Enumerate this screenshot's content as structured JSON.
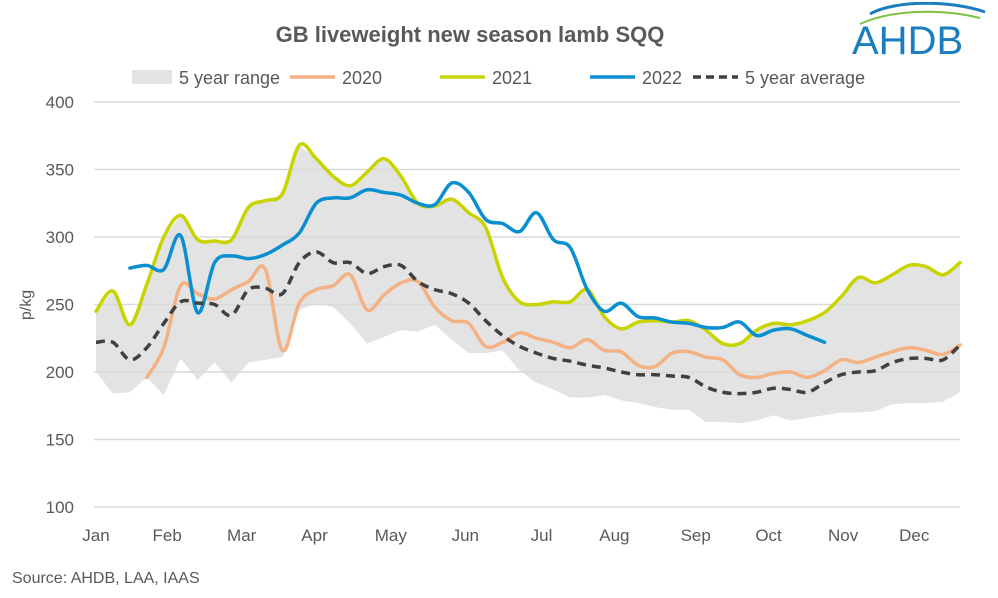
{
  "chart_data": {
    "type": "line",
    "title": "GB liveweight new season lamb SQQ",
    "ylabel": "p/kg",
    "xlabel": "",
    "ylim": [
      100,
      400
    ],
    "yticks": [
      100,
      150,
      200,
      250,
      300,
      350,
      400
    ],
    "xlim": [
      1,
      52
    ],
    "x_unit": "week",
    "month_ticks": [
      {
        "label": "Jan",
        "week": 1
      },
      {
        "label": "Feb",
        "week": 5.2
      },
      {
        "label": "Mar",
        "week": 9.6
      },
      {
        "label": "Apr",
        "week": 13.9
      },
      {
        "label": "May",
        "week": 18.4
      },
      {
        "label": "Jun",
        "week": 22.8
      },
      {
        "label": "Jul",
        "week": 27.3
      },
      {
        "label": "Aug",
        "week": 31.6
      },
      {
        "label": "Sep",
        "week": 36.4
      },
      {
        "label": "Oct",
        "week": 40.7
      },
      {
        "label": "Nov",
        "week": 45.1
      },
      {
        "label": "Dec",
        "week": 49.3
      }
    ],
    "grid": true,
    "legend_position": "top",
    "range": {
      "name": "5 year range",
      "color": "#e3e3e3",
      "start_week": 1,
      "upper": [
        245,
        260,
        235,
        265,
        300,
        316,
        298,
        297,
        298,
        322,
        327,
        332,
        368,
        358,
        345,
        338,
        348,
        358,
        345,
        325,
        323,
        328,
        318,
        307,
        270,
        252,
        250,
        252,
        252,
        261,
        241,
        232,
        237,
        238,
        237,
        238,
        231,
        221,
        221,
        231,
        236,
        235,
        238,
        244,
        256,
        270,
        266,
        272,
        279,
        278,
        272,
        281
      ],
      "lower": [
        200,
        184,
        185,
        196,
        183,
        210,
        194,
        207,
        192,
        207,
        209,
        211,
        246,
        251,
        248,
        236,
        221,
        226,
        231,
        230,
        235,
        224,
        214,
        214,
        216,
        201,
        192,
        187,
        181,
        181,
        183,
        179,
        177,
        174,
        172,
        172,
        163,
        163,
        162,
        164,
        168,
        164,
        166,
        168,
        170,
        170,
        171,
        176,
        177,
        177,
        178,
        185
      ]
    },
    "series": [
      {
        "name": "2020",
        "color": "#f4b183",
        "dashed": false,
        "start_week": 4,
        "values": [
          196,
          218,
          264,
          258,
          254,
          261,
          267,
          276,
          216,
          251,
          261,
          264,
          272,
          246,
          257,
          266,
          267,
          248,
          238,
          236,
          219,
          222,
          229,
          225,
          222,
          218,
          224,
          216,
          215,
          205,
          204,
          214,
          215,
          211,
          209,
          198,
          196,
          199,
          200,
          196,
          201,
          209,
          207,
          211,
          215,
          218,
          216,
          213,
          220
        ]
      },
      {
        "name": "2021",
        "color": "#c8d400",
        "dashed": false,
        "start_week": 1,
        "values": [
          245,
          260,
          235,
          265,
          300,
          316,
          298,
          297,
          298,
          322,
          327,
          332,
          368,
          358,
          345,
          338,
          348,
          358,
          345,
          325,
          323,
          328,
          318,
          307,
          270,
          252,
          250,
          252,
          252,
          261,
          241,
          232,
          237,
          238,
          237,
          238,
          231,
          221,
          221,
          231,
          236,
          235,
          238,
          244,
          256,
          270,
          266,
          272,
          279,
          278,
          272,
          281
        ]
      },
      {
        "name": "2022",
        "color": "#0a8fd0",
        "dashed": false,
        "start_week": 3,
        "values": [
          277,
          279,
          276,
          301,
          244,
          281,
          286,
          284,
          287,
          294,
          303,
          325,
          329,
          329,
          335,
          333,
          331,
          325,
          324,
          340,
          333,
          313,
          310,
          304,
          318,
          298,
          292,
          261,
          245,
          251,
          241,
          240,
          237,
          236,
          233,
          233,
          237,
          227,
          231,
          232,
          227,
          222
        ]
      },
      {
        "name": "5 year average",
        "color": "#404040",
        "dashed": true,
        "start_week": 1,
        "values": [
          222,
          222,
          209,
          218,
          236,
          252,
          251,
          250,
          242,
          261,
          262,
          258,
          281,
          289,
          281,
          281,
          273,
          278,
          279,
          267,
          261,
          258,
          251,
          238,
          227,
          219,
          214,
          210,
          208,
          205,
          203,
          200,
          198,
          198,
          197,
          196,
          189,
          185,
          184,
          185,
          188,
          187,
          185,
          192,
          198,
          200,
          201,
          207,
          210,
          210,
          209,
          220
        ]
      }
    ]
  },
  "source": "Source: AHDB, LAA, IAAS",
  "logo": {
    "text": "AHDB",
    "color": "#1a7dc0"
  }
}
